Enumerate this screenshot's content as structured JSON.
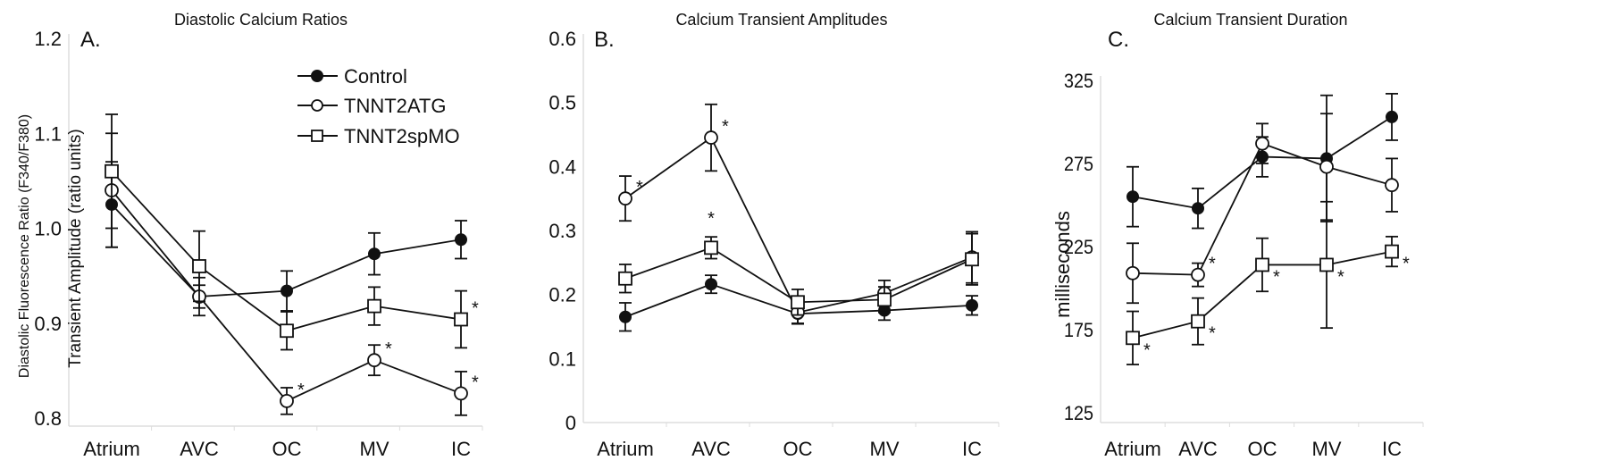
{
  "legend": [
    {
      "name": "Control",
      "marker": "filled-circle"
    },
    {
      "name": "TNNT2ATG",
      "marker": "open-circle"
    },
    {
      "name": "TNNT2spMO",
      "marker": "open-square"
    }
  ],
  "chart_data": [
    {
      "type": "line",
      "panel": "A.",
      "title": "Diastolic Calcium Ratios",
      "xlabel": "",
      "ylabel": "Diastolic Fluorescence Ratio (F340/F380)",
      "categories": [
        "Atrium",
        "AVC",
        "OC",
        "MV",
        "IC"
      ],
      "ylim": [
        0.8,
        1.2
      ],
      "yticks": [
        "0.8",
        "0.9",
        "1.0",
        "1.1",
        "1.2"
      ],
      "legend_position": "top-right",
      "series": [
        {
          "name": "Control",
          "values": [
            1.025,
            0.928,
            0.934,
            0.973,
            0.988
          ],
          "errors": [
            0.045,
            0.012,
            0.021,
            0.022,
            0.02
          ],
          "significant": [
            false,
            false,
            false,
            false,
            false
          ]
        },
        {
          "name": "TNNT2ATG",
          "values": [
            1.04,
            0.928,
            0.818,
            0.861,
            0.826
          ],
          "errors": [
            0.06,
            0.02,
            0.014,
            0.016,
            0.023
          ],
          "significant": [
            false,
            false,
            true,
            true,
            true
          ]
        },
        {
          "name": "TNNT2spMO",
          "values": [
            1.06,
            0.96,
            0.892,
            0.918,
            0.904
          ],
          "errors": [
            0.06,
            0.037,
            0.02,
            0.02,
            0.03
          ],
          "significant": [
            false,
            false,
            false,
            false,
            true
          ]
        }
      ]
    },
    {
      "type": "line",
      "panel": "B.",
      "title": "Calcium Transient Amplitudes",
      "xlabel": "",
      "ylabel": "Transient Amplitude (ratio units)",
      "categories": [
        "Atrium",
        "AVC",
        "OC",
        "MV",
        "IC"
      ],
      "ylim": [
        0,
        0.6
      ],
      "yticks": [
        "0",
        "0.1",
        "0.2",
        "0.3",
        "0.4",
        "0.5",
        "0.6"
      ],
      "series": [
        {
          "name": "Control",
          "values": [
            0.165,
            0.216,
            0.17,
            0.175,
            0.183
          ],
          "errors": [
            0.022,
            0.014,
            0.015,
            0.015,
            0.015
          ],
          "significant": [
            false,
            false,
            false,
            false,
            false
          ]
        },
        {
          "name": "TNNT2ATG",
          "values": [
            0.35,
            0.445,
            0.172,
            0.202,
            0.258
          ],
          "errors": [
            0.035,
            0.052,
            0.018,
            0.02,
            0.04
          ],
          "significant": [
            true,
            true,
            false,
            false,
            false
          ]
        },
        {
          "name": "TNNT2spMO",
          "values": [
            0.225,
            0.273,
            0.188,
            0.192,
            0.255
          ],
          "errors": [
            0.022,
            0.017,
            0.02,
            0.02,
            0.04
          ],
          "significant": [
            false,
            true,
            false,
            false,
            false
          ]
        }
      ]
    },
    {
      "type": "line",
      "panel": "C.",
      "title": "Calcium Transient Duration",
      "xlabel": "",
      "ylabel": "milliseconds",
      "categories": [
        "Atrium",
        "AVC",
        "OC",
        "MV",
        "IC"
      ],
      "ylim": [
        120,
        325
      ],
      "yticks": [
        "125",
        "175",
        "225",
        "275",
        "325"
      ],
      "series": [
        {
          "name": "Control",
          "values": [
            255,
            248,
            279,
            278,
            303
          ],
          "errors": [
            18,
            12,
            12,
            38,
            14
          ],
          "significant": [
            false,
            false,
            false,
            false,
            false
          ]
        },
        {
          "name": "TNNT2ATG",
          "values": [
            209,
            208,
            287,
            273,
            262
          ],
          "errors": [
            18,
            7,
            12,
            32,
            16
          ],
          "significant": [
            false,
            true,
            false,
            false,
            false
          ]
        },
        {
          "name": "TNNT2spMO",
          "values": [
            170,
            180,
            214,
            214,
            222
          ],
          "errors": [
            16,
            14,
            16,
            38,
            9
          ],
          "significant": [
            true,
            true,
            true,
            true,
            true
          ]
        }
      ]
    }
  ]
}
